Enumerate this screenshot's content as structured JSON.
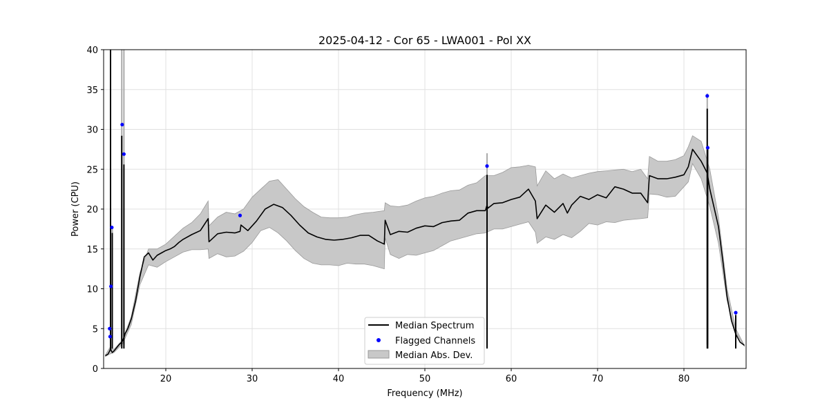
{
  "chart_data": {
    "type": "line",
    "title": "2025-04-12 - Cor 65 - LWA001 - Pol XX",
    "xlabel": "Frequency (MHz)",
    "ylabel": "Power (CPU)",
    "xlim": [
      12.8,
      87.2
    ],
    "ylim": [
      0,
      40
    ],
    "xticks": [
      20,
      30,
      40,
      50,
      60,
      70,
      80
    ],
    "yticks": [
      0,
      5,
      10,
      15,
      20,
      25,
      30,
      35,
      40
    ],
    "grid": true,
    "legend_position": "lower-center",
    "legend": [
      "Median Spectrum",
      "Flagged Channels",
      "Median Abs. Dev."
    ],
    "colors": {
      "median": "#000000",
      "flagged": "#0000ff",
      "band": "#bbbbbb",
      "band_edge": "#999999",
      "grid": "#e0e0e0"
    },
    "series": [
      {
        "name": "Median Spectrum",
        "x": [
          13.0,
          13.3,
          13.5,
          13.6,
          13.7,
          13.8,
          13.9,
          14.0,
          14.3,
          14.6,
          14.9,
          15.0,
          15.2,
          15.3,
          15.6,
          16.0,
          16.5,
          17.0,
          17.5,
          18.0,
          18.5,
          19.0,
          19.5,
          20.0,
          20.5,
          21.0,
          21.5,
          22.0,
          23.0,
          24.0,
          24.9,
          25.0,
          26.0,
          27.0,
          28.0,
          28.6,
          28.7,
          29.5,
          30.5,
          31.5,
          32.5,
          33.5,
          34.5,
          35.5,
          36.5,
          37.5,
          38.5,
          39.5,
          40.5,
          41.5,
          42.5,
          43.5,
          44.5,
          45.3,
          45.4,
          46.0,
          47.0,
          48.0,
          49.0,
          50.0,
          51.0,
          52.0,
          53.0,
          54.0,
          55.0,
          56.0,
          57.0,
          57.2,
          57.3,
          58.0,
          59.0,
          60.0,
          61.0,
          62.0,
          62.8,
          63.0,
          64.0,
          65.0,
          66.0,
          66.5,
          67.0,
          68.0,
          69.0,
          70.0,
          71.0,
          72.0,
          73.0,
          74.0,
          75.0,
          75.8,
          76.0,
          77.0,
          78.0,
          79.0,
          80.0,
          80.5,
          81.0,
          82.0,
          82.7,
          83.0,
          84.0,
          84.5,
          85.0,
          85.5,
          86.0,
          86.5,
          87.0
        ],
        "y": [
          1.6,
          1.8,
          2.2,
          2.5,
          2.2,
          2.0,
          2.1,
          2.2,
          2.6,
          3.0,
          3.3,
          3.5,
          4.0,
          4.4,
          5.0,
          6.2,
          8.5,
          11.5,
          14.0,
          14.5,
          13.6,
          14.2,
          14.5,
          14.8,
          15.0,
          15.3,
          15.8,
          16.2,
          16.8,
          17.3,
          18.8,
          15.9,
          16.9,
          17.1,
          17.0,
          17.2,
          18.0,
          17.3,
          18.5,
          20.0,
          20.6,
          20.2,
          19.2,
          18.0,
          17.0,
          16.5,
          16.2,
          16.1,
          16.2,
          16.4,
          16.7,
          16.7,
          16.0,
          15.6,
          18.6,
          16.8,
          17.2,
          17.1,
          17.6,
          17.9,
          17.8,
          18.3,
          18.5,
          18.6,
          19.5,
          19.8,
          19.8,
          20.5,
          20.1,
          20.7,
          20.8,
          21.2,
          21.5,
          22.5,
          21.0,
          18.8,
          20.5,
          19.6,
          20.7,
          19.5,
          20.5,
          21.6,
          21.2,
          21.8,
          21.4,
          22.8,
          22.5,
          22.0,
          22.0,
          20.8,
          24.2,
          23.8,
          23.8,
          24.0,
          24.3,
          25.3,
          27.5,
          26.0,
          24.5,
          22.5,
          17.8,
          13.5,
          9.0,
          6.0,
          4.3,
          3.3,
          2.9
        ],
        "color": "#000000"
      },
      {
        "name": "Median Abs. Dev.",
        "x": [
          13.0,
          13.5,
          14.0,
          15.0,
          16.0,
          17.0,
          18.0,
          19.0,
          20.0,
          21.0,
          22.0,
          23.0,
          24.0,
          24.9,
          25.0,
          26.0,
          27.0,
          28.0,
          29.0,
          30.0,
          31.0,
          32.0,
          33.0,
          34.0,
          35.0,
          36.0,
          37.0,
          38.0,
          39.0,
          40.0,
          41.0,
          42.0,
          43.0,
          44.0,
          45.3,
          45.4,
          46.0,
          47.0,
          48.0,
          49.0,
          50.0,
          51.0,
          52.0,
          53.0,
          54.0,
          55.0,
          56.0,
          57.0,
          58.0,
          59.0,
          60.0,
          61.0,
          62.0,
          62.8,
          63.0,
          64.0,
          65.0,
          66.0,
          67.0,
          68.0,
          69.0,
          70.0,
          71.0,
          72.0,
          73.0,
          74.0,
          75.0,
          75.8,
          76.0,
          77.0,
          78.0,
          79.0,
          80.0,
          80.5,
          81.0,
          82.0,
          83.0,
          84.0,
          85.0,
          86.0,
          87.0
        ],
        "upper": [
          1.7,
          2.6,
          2.4,
          3.6,
          6.5,
          12.0,
          15.0,
          15.0,
          15.6,
          16.6,
          17.6,
          18.3,
          19.4,
          21.0,
          17.9,
          19.0,
          19.6,
          19.4,
          20.0,
          21.5,
          22.5,
          23.5,
          23.7,
          22.5,
          21.3,
          20.3,
          19.6,
          19.0,
          18.9,
          18.9,
          19.0,
          19.3,
          19.5,
          19.6,
          19.8,
          20.8,
          20.4,
          20.3,
          20.5,
          21.0,
          21.4,
          21.6,
          22.0,
          22.3,
          22.4,
          23.0,
          23.3,
          24.2,
          24.2,
          24.6,
          25.2,
          25.3,
          25.5,
          25.3,
          22.9,
          24.8,
          23.8,
          24.4,
          23.9,
          24.2,
          24.5,
          24.7,
          24.8,
          24.9,
          25.0,
          24.7,
          25.0,
          23.8,
          26.6,
          26.0,
          26.0,
          26.2,
          26.7,
          27.8,
          29.2,
          28.5,
          25.0,
          19.0,
          10.0,
          5.0,
          2.9
        ],
        "lower": [
          1.5,
          1.8,
          2.0,
          3.1,
          5.5,
          10.5,
          13.0,
          12.7,
          13.4,
          14.0,
          14.6,
          14.9,
          14.9,
          15.0,
          13.8,
          14.4,
          14.0,
          14.1,
          14.7,
          15.8,
          17.3,
          17.7,
          17.0,
          16.0,
          14.8,
          13.8,
          13.2,
          13.0,
          13.0,
          12.9,
          13.2,
          13.1,
          13.1,
          12.9,
          12.5,
          16.4,
          14.3,
          13.8,
          14.3,
          14.2,
          14.5,
          14.8,
          15.4,
          16.0,
          16.3,
          16.6,
          16.9,
          17.0,
          17.5,
          17.5,
          17.8,
          18.1,
          18.4,
          17.1,
          15.7,
          16.5,
          16.2,
          16.8,
          16.4,
          17.2,
          18.2,
          18.0,
          18.4,
          18.3,
          18.6,
          18.7,
          18.8,
          18.9,
          21.9,
          21.8,
          21.5,
          21.6,
          22.8,
          23.4,
          25.7,
          23.8,
          20.3,
          15.7,
          8.5,
          4.5,
          2.8
        ]
      },
      {
        "name": "Flagged Channels",
        "x": [
          13.5,
          13.55,
          13.65,
          13.75,
          14.95,
          15.15,
          28.6,
          57.2,
          82.7,
          82.75,
          86.0
        ],
        "y": [
          5.0,
          4.0,
          10.3,
          17.7,
          30.6,
          26.9,
          19.2,
          25.4,
          34.2,
          27.7,
          7.0
        ],
        "color": "#0000ff"
      }
    ],
    "spikes": [
      {
        "x": 13.6,
        "top": 40.0,
        "band_top": 40.0
      },
      {
        "x": 13.8,
        "top": 17.0,
        "band_top": 17.5
      },
      {
        "x": 14.9,
        "top": 29.2,
        "band_top": 40.0
      },
      {
        "x": 15.15,
        "top": 25.6,
        "band_top": 40.0
      },
      {
        "x": 57.2,
        "top": 24.3,
        "band_top": 27.0
      },
      {
        "x": 82.7,
        "top": 32.6,
        "band_top": 34.5
      },
      {
        "x": 82.75,
        "top": 27.7,
        "band_top": 28.0
      },
      {
        "x": 86.0,
        "top": 6.7,
        "band_top": 7.0
      }
    ]
  }
}
